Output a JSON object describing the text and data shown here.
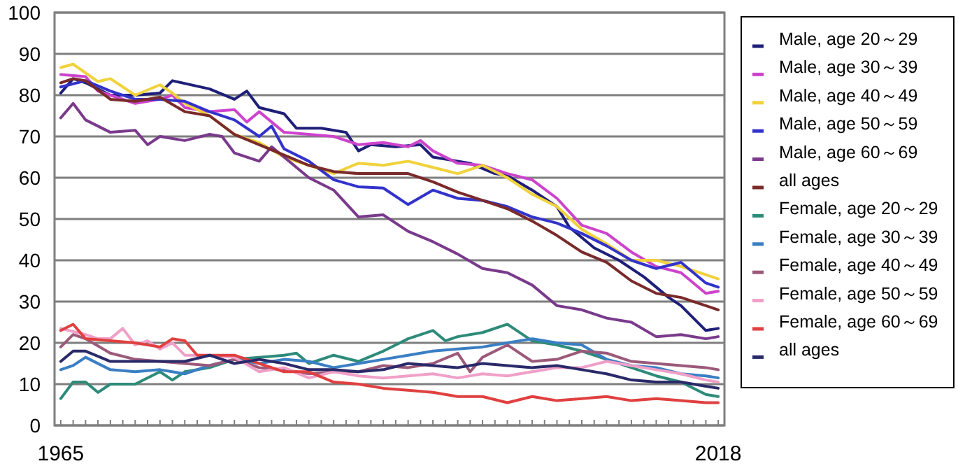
{
  "chart_data": {
    "type": "line",
    "legend": "right",
    "grid": "y",
    "marker": "none",
    "line_style": "solid",
    "xlim": [
      1964.5,
      2018.5
    ],
    "ylim": [
      0,
      100
    ],
    "yticks": [
      0,
      10,
      20,
      30,
      40,
      50,
      60,
      70,
      80,
      90,
      100
    ],
    "xticks": [
      1965,
      {
        "value": 1966,
        "label": null
      },
      {
        "value": 1967,
        "label": null
      },
      {
        "value": 1968,
        "label": null
      },
      {
        "value": 1969,
        "label": null
      },
      {
        "value": 1970,
        "label": null
      },
      {
        "value": 1971,
        "label": null
      },
      {
        "value": 1972,
        "label": null
      },
      {
        "value": 1973,
        "label": null
      },
      {
        "value": 1974,
        "label": null
      },
      {
        "value": 1975,
        "label": null
      },
      {
        "value": 1976,
        "label": null
      },
      {
        "value": 1977,
        "label": null
      },
      {
        "value": 1978,
        "label": null
      },
      {
        "value": 1979,
        "label": null
      },
      {
        "value": 1980,
        "label": null
      },
      {
        "value": 1981,
        "label": null
      },
      {
        "value": 1982,
        "label": null
      },
      {
        "value": 1983,
        "label": null
      },
      {
        "value": 1984,
        "label": null
      },
      {
        "value": 1985,
        "label": null
      },
      {
        "value": 1986,
        "label": null
      },
      {
        "value": 1987,
        "label": null
      },
      {
        "value": 1988,
        "label": null
      },
      {
        "value": 1989,
        "label": null
      },
      {
        "value": 1990,
        "label": null
      },
      {
        "value": 1991,
        "label": null
      },
      {
        "value": 1992,
        "label": null
      },
      {
        "value": 1993,
        "label": null
      },
      {
        "value": 1994,
        "label": null
      },
      {
        "value": 1995,
        "label": null
      },
      {
        "value": 1996,
        "label": null
      },
      {
        "value": 1997,
        "label": null
      },
      {
        "value": 1998,
        "label": null
      },
      {
        "value": 1999,
        "label": null
      },
      {
        "value": 2000,
        "label": null
      },
      {
        "value": 2001,
        "label": null
      },
      {
        "value": 2002,
        "label": null
      },
      {
        "value": 2003,
        "label": null
      },
      {
        "value": 2004,
        "label": null
      },
      {
        "value": 2005,
        "label": null
      },
      {
        "value": 2006,
        "label": null
      },
      {
        "value": 2007,
        "label": null
      },
      {
        "value": 2008,
        "label": null
      },
      {
        "value": 2009,
        "label": null
      },
      {
        "value": 2010,
        "label": null
      },
      {
        "value": 2011,
        "label": null
      },
      {
        "value": 2012,
        "label": null
      },
      {
        "value": 2013,
        "label": null
      },
      {
        "value": 2014,
        "label": null
      },
      {
        "value": 2015,
        "label": null
      },
      {
        "value": 2016,
        "label": null
      },
      {
        "value": 2017,
        "label": null
      },
      2018
    ],
    "series": [
      {
        "name": "Male, age 20～29",
        "color": "#1f1f7a",
        "x": [
          1965,
          1966,
          1967,
          1969,
          1971,
          1973,
          1974,
          1977,
          1979,
          1980,
          1981,
          1983,
          1984,
          1986,
          1988,
          1989,
          1990,
          1992,
          1994,
          1995,
          1997,
          1998,
          2000,
          2001,
          2003,
          2005,
          2006,
          2008,
          2010,
          2012,
          2014,
          2015,
          2017,
          2018
        ],
        "values": [
          80.5,
          84,
          83,
          80,
          80,
          80.5,
          83.5,
          81.5,
          79,
          81,
          77,
          75.5,
          72,
          72,
          71,
          66.5,
          68,
          67.5,
          68,
          65,
          64,
          63.5,
          61,
          60.5,
          57,
          53,
          48,
          43,
          40,
          36,
          31,
          29,
          23,
          23.5
        ]
      },
      {
        "name": "Male, age 30～39",
        "color": "#cc44cc",
        "x": [
          1965,
          1967,
          1968,
          1969,
          1971,
          1973,
          1974,
          1975,
          1977,
          1979,
          1980,
          1981,
          1983,
          1985,
          1987,
          1989,
          1991,
          1993,
          1994,
          1995,
          1997,
          1999,
          2001,
          2003,
          2005,
          2007,
          2009,
          2011,
          2013,
          2015,
          2017,
          2018
        ],
        "values": [
          85,
          84.5,
          81,
          80,
          78,
          79,
          80,
          77,
          76,
          76.5,
          73.5,
          76,
          71,
          70.5,
          70,
          68,
          68.5,
          67.5,
          69,
          66.5,
          63.5,
          63,
          61,
          59.5,
          55,
          48.5,
          46.5,
          42,
          38.5,
          37,
          32,
          32.5
        ]
      },
      {
        "name": "Male, age 40～49",
        "color": "#f0d23c",
        "x": [
          1965,
          1966,
          1968,
          1969,
          1971,
          1973,
          1974,
          1975,
          1977,
          1979,
          1981,
          1983,
          1985,
          1987,
          1989,
          1991,
          1993,
          1995,
          1997,
          1999,
          2001,
          2003,
          2005,
          2007,
          2009,
          2011,
          2013,
          2015,
          2017,
          2018
        ],
        "values": [
          86.7,
          87.5,
          83.3,
          84,
          80,
          82.5,
          80.5,
          78,
          75,
          70.5,
          68.5,
          65,
          63,
          61,
          63.5,
          63,
          64,
          62.5,
          61,
          63,
          60,
          56,
          53,
          47.5,
          44,
          40,
          40,
          38.5,
          36.5,
          35.5
        ]
      },
      {
        "name": "Male, age 50～59",
        "color": "#3333cc",
        "x": [
          1965,
          1967,
          1969,
          1971,
          1973,
          1975,
          1977,
          1979,
          1981,
          1982,
          1983,
          1985,
          1987,
          1989,
          1991,
          1993,
          1995,
          1997,
          1999,
          2001,
          2003,
          2005,
          2007,
          2009,
          2011,
          2013,
          2015,
          2017,
          2018
        ],
        "values": [
          82,
          83.5,
          81,
          79,
          79,
          78.5,
          76,
          74,
          70,
          72.5,
          67,
          64,
          59.5,
          57.8,
          57.5,
          53.5,
          57,
          55,
          54.5,
          53,
          50.5,
          49,
          46.5,
          43.5,
          40,
          38,
          39.5,
          34.5,
          33.5
        ]
      },
      {
        "name": "Male, age 60～69",
        "color": "#7a3a8c",
        "x": [
          1965,
          1966,
          1967,
          1969,
          1971,
          1972,
          1973,
          1975,
          1977,
          1978,
          1979,
          1981,
          1982,
          1983,
          1985,
          1987,
          1989,
          1991,
          1993,
          1995,
          1997,
          1999,
          2001,
          2003,
          2005,
          2007,
          2009,
          2011,
          2013,
          2015,
          2017,
          2018
        ],
        "values": [
          74.5,
          78,
          74,
          71,
          71.5,
          68,
          70,
          69,
          70.5,
          70,
          66,
          64,
          67.5,
          65,
          60,
          57,
          50.5,
          51,
          47,
          44.5,
          41.5,
          38,
          37,
          34,
          29,
          28,
          26,
          25,
          21.5,
          22,
          21,
          21.5
        ]
      },
      {
        "name": "all ages",
        "color": "#7a2a2a",
        "x": [
          1965,
          1966,
          1967,
          1969,
          1971,
          1973,
          1975,
          1977,
          1979,
          1981,
          1983,
          1985,
          1987,
          1989,
          1991,
          1993,
          1995,
          1997,
          1999,
          2001,
          2003,
          2005,
          2007,
          2009,
          2011,
          2013,
          2015,
          2017,
          2018
        ],
        "values": [
          83,
          84,
          83.5,
          79,
          78.5,
          79.5,
          76,
          75,
          70.5,
          68,
          65.5,
          63,
          61.5,
          61,
          61,
          61,
          59,
          56.5,
          54.5,
          52.5,
          49.5,
          46,
          42,
          39.5,
          35,
          32,
          31,
          29,
          28
        ]
      },
      {
        "name": "Female, age 20～29",
        "color": "#2e8b7a",
        "x": [
          1965,
          1966,
          1967,
          1968,
          1969,
          1971,
          1973,
          1974,
          1975,
          1977,
          1979,
          1981,
          1983,
          1984,
          1985,
          1987,
          1989,
          1991,
          1992,
          1993,
          1995,
          1996,
          1997,
          1999,
          2001,
          2003,
          2005,
          2007,
          2009,
          2011,
          2013,
          2015,
          2017,
          2018
        ],
        "values": [
          6.5,
          10.5,
          10.5,
          8,
          10,
          10,
          13,
          11,
          13,
          14,
          16,
          16.5,
          17,
          17.5,
          15,
          17,
          15.5,
          18,
          19.5,
          21,
          23,
          20.5,
          21.5,
          22.5,
          24.5,
          20.5,
          19.5,
          18,
          16,
          14,
          12,
          10.5,
          7.5,
          7
        ]
      },
      {
        "name": "Female, age 30～39",
        "color": "#3a7fc4",
        "x": [
          1965,
          1966,
          1967,
          1969,
          1971,
          1973,
          1975,
          1977,
          1979,
          1981,
          1983,
          1985,
          1987,
          1989,
          1991,
          1993,
          1995,
          1997,
          1999,
          2001,
          2003,
          2005,
          2007,
          2009,
          2011,
          2013,
          2015,
          2017,
          2018
        ],
        "values": [
          13.5,
          14.5,
          16.5,
          13.5,
          13,
          13.5,
          12.5,
          14.5,
          16,
          15,
          16,
          15.5,
          14,
          15,
          16,
          17,
          18,
          18.5,
          19,
          20,
          21,
          20,
          19.5,
          16,
          14.5,
          14,
          12.5,
          12,
          11.5
        ]
      },
      {
        "name": "Female, age 40～49",
        "color": "#9c5a7a",
        "x": [
          1965,
          1966,
          1967,
          1969,
          1971,
          1973,
          1975,
          1977,
          1979,
          1981,
          1983,
          1985,
          1987,
          1989,
          1991,
          1993,
          1995,
          1997,
          1998,
          1999,
          2001,
          2003,
          2005,
          2007,
          2009,
          2011,
          2013,
          2015,
          2017,
          2018
        ],
        "values": [
          19,
          22,
          21,
          17.5,
          16,
          15.5,
          15,
          14.5,
          16,
          14,
          13.5,
          12.5,
          13,
          13,
          14.5,
          14,
          15,
          17.5,
          13,
          16.5,
          19.5,
          15.5,
          16,
          18,
          17.5,
          15.5,
          15,
          14.5,
          14,
          13.5
        ]
      },
      {
        "name": "Female, age 50～59",
        "color": "#f0a0c8",
        "x": [
          1965,
          1967,
          1968,
          1969,
          1970,
          1971,
          1972,
          1973,
          1974,
          1975,
          1977,
          1979,
          1981,
          1983,
          1985,
          1987,
          1989,
          1991,
          1993,
          1995,
          1997,
          1999,
          2001,
          2003,
          2005,
          2007,
          2009,
          2011,
          2013,
          2015,
          2017,
          2018
        ],
        "values": [
          23.5,
          22,
          21,
          21,
          23.5,
          19.5,
          20.5,
          18.5,
          20,
          17,
          17,
          16.5,
          13,
          14,
          11.5,
          13,
          12,
          11.5,
          12,
          12.5,
          11.5,
          12.5,
          12,
          13,
          14,
          14,
          15.5,
          14.5,
          13.5,
          12.5,
          11,
          10.5
        ]
      },
      {
        "name": "Female, age 60～69",
        "color": "#e04040",
        "x": [
          1965,
          1966,
          1967,
          1969,
          1971,
          1973,
          1974,
          1975,
          1976,
          1977,
          1979,
          1981,
          1983,
          1985,
          1987,
          1989,
          1991,
          1993,
          1995,
          1997,
          1999,
          2001,
          2003,
          2005,
          2007,
          2009,
          2011,
          2013,
          2015,
          2017,
          2018
        ],
        "values": [
          23,
          24.5,
          21,
          20.5,
          20,
          19,
          21,
          20.5,
          17,
          17,
          17,
          15,
          13,
          13,
          10.5,
          10,
          9,
          8.5,
          8,
          7,
          7,
          5.5,
          7,
          6,
          6.5,
          7,
          6,
          6.5,
          6,
          5.5,
          5.5
        ]
      },
      {
        "name": "all ages",
        "color": "#2a2a6a",
        "x": [
          1965,
          1966,
          1967,
          1969,
          1971,
          1973,
          1975,
          1977,
          1979,
          1981,
          1983,
          1985,
          1987,
          1989,
          1991,
          1993,
          1995,
          1997,
          1999,
          2001,
          2003,
          2005,
          2007,
          2009,
          2011,
          2013,
          2015,
          2017,
          2018
        ],
        "values": [
          15.5,
          18,
          18,
          15.5,
          15.5,
          15.5,
          15.5,
          17,
          15,
          16,
          15,
          13.5,
          13.5,
          13,
          13.5,
          15,
          14.5,
          14,
          15,
          14.5,
          14,
          14.5,
          13.5,
          12.5,
          11,
          10.5,
          10.5,
          9.5,
          9
        ]
      }
    ]
  }
}
